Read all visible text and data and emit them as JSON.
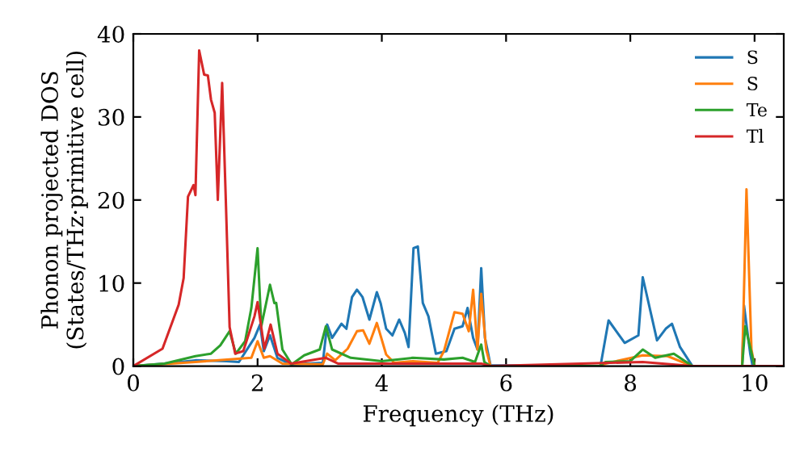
{
  "chart_data": {
    "type": "line",
    "xlabel": "Frequency (THz)",
    "ylabel": "Phonon projected DOS\n(States/THz·primitive cell)",
    "xlim": [
      0,
      10.47
    ],
    "ylim": [
      0,
      40
    ],
    "xticks": [
      0,
      2,
      4,
      6,
      8,
      10
    ],
    "yticks": [
      0,
      10,
      20,
      30,
      40
    ],
    "grid": false,
    "legend": "top right",
    "marker": "none",
    "line_style": "solid",
    "series": [
      {
        "name": "S",
        "color": "#1f77b4",
        "x": [
          0,
          0.5,
          1.0,
          1.5,
          1.7,
          1.95,
          2.04,
          2.1,
          2.2,
          2.32,
          2.54,
          3.05,
          3.12,
          3.2,
          3.35,
          3.43,
          3.52,
          3.6,
          3.69,
          3.8,
          3.92,
          3.98,
          4.07,
          4.17,
          4.28,
          4.37,
          4.43,
          4.51,
          4.58,
          4.66,
          4.75,
          4.87,
          5.04,
          5.17,
          5.3,
          5.38,
          5.47,
          5.54,
          5.6,
          5.66,
          5.75,
          7.52,
          7.65,
          7.91,
          8.13,
          8.2,
          8.43,
          8.57,
          8.67,
          8.8,
          9.0,
          9.8,
          9.83,
          9.93,
          9.97,
          10.47
        ],
        "values": [
          0,
          0.3,
          0.7,
          0.6,
          0.5,
          3.4,
          5.0,
          1.8,
          3.7,
          1.0,
          0.2,
          0.4,
          5.0,
          3.4,
          5.1,
          4.5,
          8.3,
          9.2,
          8.3,
          5.6,
          8.9,
          7.6,
          4.5,
          3.7,
          5.6,
          4.0,
          2.3,
          14.2,
          14.4,
          7.6,
          6.0,
          1.5,
          1.8,
          4.5,
          4.8,
          7.0,
          3.4,
          2.0,
          11.8,
          3.4,
          0.1,
          0,
          5.5,
          2.8,
          3.7,
          10.7,
          3.1,
          4.5,
          5.1,
          2.3,
          0,
          0,
          7.3,
          1.5,
          0,
          0
        ]
      },
      {
        "name": "S",
        "color": "#ff7f0e",
        "x": [
          0,
          1.0,
          1.9,
          2.0,
          2.1,
          2.2,
          2.4,
          3.05,
          3.12,
          3.25,
          3.45,
          3.6,
          3.7,
          3.8,
          3.92,
          4.07,
          4.2,
          4.5,
          4.9,
          5.0,
          5.17,
          5.3,
          5.4,
          5.47,
          5.54,
          5.6,
          5.68,
          5.75,
          7.5,
          7.6,
          8.2,
          8.6,
          9.0,
          9.8,
          9.87,
          9.95,
          10.0,
          10.47
        ],
        "values": [
          0,
          0.5,
          1.0,
          3.0,
          1.0,
          1.2,
          0.3,
          0.2,
          1.5,
          0.7,
          2.1,
          4.2,
          4.3,
          2.7,
          5.2,
          1.4,
          0.4,
          0.6,
          0.4,
          1.8,
          6.5,
          6.3,
          4.2,
          9.2,
          2.0,
          8.7,
          2.0,
          0,
          0,
          0.3,
          1.3,
          1.2,
          0,
          0,
          21.3,
          2.0,
          0,
          0
        ]
      },
      {
        "name": "Te",
        "color": "#2ca02c",
        "x": [
          0,
          0.5,
          1.0,
          1.25,
          1.4,
          1.55,
          1.65,
          1.8,
          1.9,
          2.0,
          2.06,
          2.2,
          2.27,
          2.3,
          2.4,
          2.55,
          2.75,
          3.0,
          3.1,
          3.2,
          3.5,
          4.0,
          4.5,
          5.0,
          5.3,
          5.5,
          5.6,
          5.65,
          5.75,
          7.5,
          7.6,
          8.0,
          8.2,
          8.4,
          8.7,
          9.0,
          9.8,
          9.85,
          10.0,
          10.47
        ],
        "values": [
          0,
          0.3,
          1.2,
          1.5,
          2.5,
          4.2,
          1.5,
          3.0,
          7.0,
          14.2,
          4.8,
          9.8,
          7.6,
          7.6,
          2.0,
          0.2,
          1.3,
          2.0,
          4.8,
          2.0,
          1.0,
          0.6,
          1.0,
          0.8,
          1.0,
          0.5,
          2.6,
          0.5,
          0,
          0,
          0.5,
          0.6,
          2.0,
          1.0,
          1.5,
          0,
          0,
          4.8,
          0,
          0
        ]
      },
      {
        "name": "Tl",
        "color": "#d62728",
        "x": [
          0,
          0.47,
          0.73,
          0.81,
          0.88,
          0.97,
          1.0,
          1.06,
          1.14,
          1.2,
          1.25,
          1.31,
          1.36,
          1.43,
          1.49,
          1.55,
          1.64,
          1.77,
          1.95,
          2.0,
          2.11,
          2.21,
          2.32,
          2.54,
          3.1,
          3.3,
          5.6,
          5.75,
          8.2,
          9.0,
          10.47
        ],
        "values": [
          0,
          2.1,
          7.4,
          10.6,
          20.4,
          21.8,
          20.6,
          38.0,
          35.1,
          35.0,
          32.1,
          30.5,
          20.0,
          34.1,
          19.7,
          4.7,
          1.5,
          1.8,
          6.0,
          7.7,
          2.1,
          5.0,
          1.5,
          0.3,
          1.0,
          0.3,
          0.3,
          0,
          0.5,
          0,
          0
        ]
      }
    ]
  }
}
